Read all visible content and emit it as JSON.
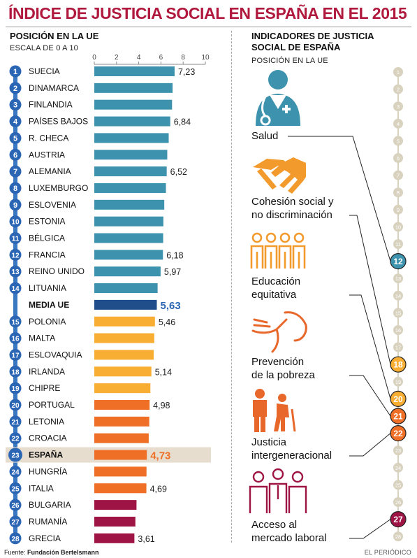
{
  "title": "ÍNDICE DE JUSTICIA SOCIAL EN ESPAÑA EN EL 2015",
  "left_panel": {
    "heading": "POSICIÓN EN LA UE",
    "subheading": "ESCALA DE 0 A 10"
  },
  "right_panel": {
    "heading_line1": "INDICADORES DE JUSTICIA",
    "heading_line2": "SOCIAL DE ESPAÑA",
    "subheading": "POSICIÓN EN LA UE"
  },
  "footer": {
    "source_prefix": "Fuente: ",
    "source_name": "Fundación Bertelsmann",
    "credit": "EL PERIÓDICO"
  },
  "colors": {
    "title": "#b0193d",
    "teal": "#3d93ad",
    "navy": "#1f4e8a",
    "yellow": "#f7ae33",
    "orange": "#ee6f25",
    "maroon": "#9e1545",
    "icon_teal": "#3d93ad",
    "icon_orange": "#f39a2c",
    "icon_dark_orange": "#e8672a",
    "icon_maroon": "#9e1545",
    "dot_grey": "#d8d2bf"
  },
  "chart_data": [
    {
      "type": "bar",
      "orientation": "horizontal",
      "xlim": [
        0,
        10
      ],
      "xticks": [
        0,
        2,
        4,
        6,
        8,
        10
      ],
      "grid": false,
      "highlight_row": "ESPAÑA",
      "rows": [
        {
          "rank": "1",
          "country": "SUECIA",
          "value": 7.23,
          "label": "7,23",
          "color": "teal"
        },
        {
          "rank": "2",
          "country": "DINAMARCA",
          "value": 7.05,
          "label": "",
          "color": "teal"
        },
        {
          "rank": "3",
          "country": "FINLANDIA",
          "value": 7.0,
          "label": "",
          "color": "teal"
        },
        {
          "rank": "4",
          "country": "PAÍSES BAJOS",
          "value": 6.84,
          "label": "6,84",
          "color": "teal"
        },
        {
          "rank": "5",
          "country": "R. CHECA",
          "value": 6.7,
          "label": "",
          "color": "teal"
        },
        {
          "rank": "6",
          "country": "AUSTRIA",
          "value": 6.57,
          "label": "",
          "color": "teal"
        },
        {
          "rank": "7",
          "country": "ALEMANIA",
          "value": 6.52,
          "label": "6,52",
          "color": "teal"
        },
        {
          "rank": "8",
          "country": "LUXEMBURGO",
          "value": 6.45,
          "label": "",
          "color": "teal"
        },
        {
          "rank": "9",
          "country": "ESLOVENIA",
          "value": 6.3,
          "label": "",
          "color": "teal"
        },
        {
          "rank": "10",
          "country": "ESTONIA",
          "value": 6.22,
          "label": "",
          "color": "teal"
        },
        {
          "rank": "11",
          "country": "BÉLGICA",
          "value": 6.2,
          "label": "",
          "color": "teal"
        },
        {
          "rank": "12",
          "country": "FRANCIA",
          "value": 6.18,
          "label": "6,18",
          "color": "teal"
        },
        {
          "rank": "13",
          "country": "REINO UNIDO",
          "value": 5.97,
          "label": "5,97",
          "color": "teal"
        },
        {
          "rank": "14",
          "country": "LITUANIA",
          "value": 5.7,
          "label": "",
          "color": "teal"
        },
        {
          "rank": "",
          "country": "MEDIA UE",
          "value": 5.63,
          "label": "5,63",
          "color": "navy",
          "is_average": true
        },
        {
          "rank": "15",
          "country": "POLONIA",
          "value": 5.46,
          "label": "5,46",
          "color": "yellow"
        },
        {
          "rank": "16",
          "country": "MALTA",
          "value": 5.4,
          "label": "",
          "color": "yellow"
        },
        {
          "rank": "17",
          "country": "ESLOVAQUIA",
          "value": 5.35,
          "label": "",
          "color": "yellow"
        },
        {
          "rank": "18",
          "country": "IRLANDA",
          "value": 5.14,
          "label": "5,14",
          "color": "yellow"
        },
        {
          "rank": "19",
          "country": "CHIPRE",
          "value": 5.05,
          "label": "",
          "color": "yellow"
        },
        {
          "rank": "20",
          "country": "PORTUGAL",
          "value": 4.98,
          "label": "4,98",
          "color": "orange"
        },
        {
          "rank": "21",
          "country": "LETONIA",
          "value": 4.95,
          "label": "",
          "color": "orange"
        },
        {
          "rank": "22",
          "country": "CROACIA",
          "value": 4.9,
          "label": "",
          "color": "orange"
        },
        {
          "rank": "23",
          "country": "ESPAÑA",
          "value": 4.73,
          "label": "4,73",
          "color": "orange",
          "is_highlight": true
        },
        {
          "rank": "24",
          "country": "HUNGRÍA",
          "value": 4.7,
          "label": "",
          "color": "orange"
        },
        {
          "rank": "25",
          "country": "ITALIA",
          "value": 4.69,
          "label": "4,69",
          "color": "orange"
        },
        {
          "rank": "26",
          "country": "BULGARIA",
          "value": 3.8,
          "label": "",
          "color": "maroon"
        },
        {
          "rank": "27",
          "country": "RUMANÍA",
          "value": 3.7,
          "label": "",
          "color": "maroon"
        },
        {
          "rank": "28",
          "country": "GRECIA",
          "value": 3.61,
          "label": "3,61",
          "color": "maroon"
        }
      ]
    },
    {
      "type": "table",
      "scale_positions": [
        "1",
        "2",
        "3",
        "4",
        "5",
        "6",
        "7",
        "8",
        "9",
        "10",
        "11",
        "12",
        "13",
        "14",
        "15",
        "16",
        "17",
        "18",
        "19",
        "20",
        "21",
        "22",
        "23",
        "24",
        "25",
        "26",
        "27",
        "28"
      ],
      "indicators": [
        {
          "name": "Salud",
          "position": 12,
          "color": "teal",
          "icon": "doctor-icon"
        },
        {
          "name": "Cohesión social y\nno discriminación",
          "position": 18,
          "color": "yellow",
          "icon": "handshake-icon"
        },
        {
          "name": "Educación\nequitativa",
          "position": 20,
          "color": "yellow",
          "icon": "students-icon"
        },
        {
          "name": "Prevención\nde la pobreza",
          "position": 21,
          "color": "orange",
          "icon": "helping-hand-icon"
        },
        {
          "name": "Justicia\nintergeneracional",
          "position": 22,
          "color": "orange",
          "icon": "generations-icon"
        },
        {
          "name": "Acceso al\nmercado laboral",
          "position": 27,
          "color": "maroon",
          "icon": "workers-icon"
        }
      ]
    }
  ]
}
